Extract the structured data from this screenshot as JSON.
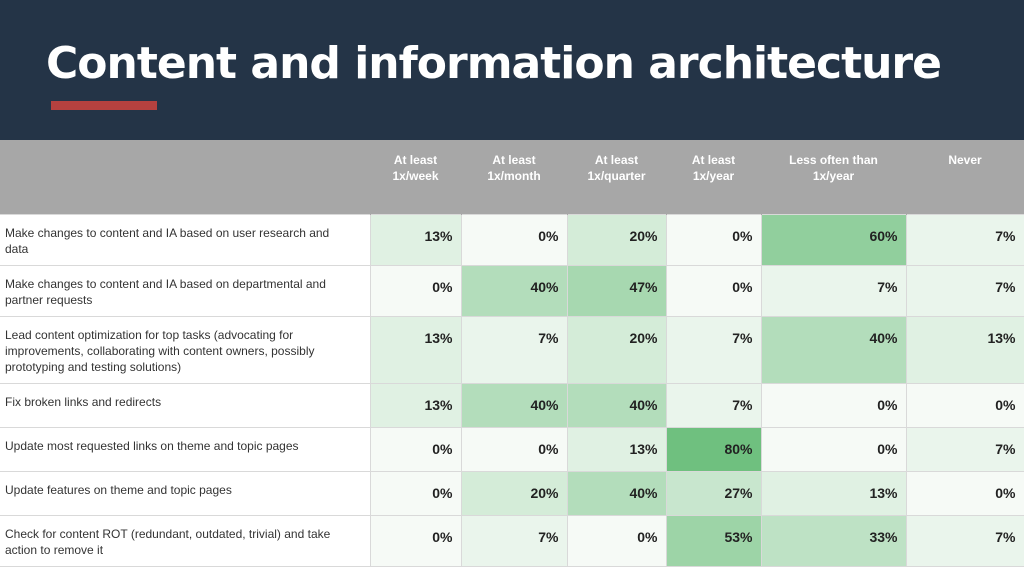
{
  "title": "Content and information architecture",
  "colors": {
    "header_bg": "#243447",
    "accent": "#b5413f",
    "column_header_bg": "#a7a7a7",
    "scale_low": "#f6faf6",
    "scale_high": "#6fc07f"
  },
  "chart_data": {
    "type": "table",
    "columns": [
      [
        "At least",
        "1x/week"
      ],
      [
        "At least",
        "1x/month"
      ],
      [
        "At least",
        "1x/quarter"
      ],
      [
        "At least",
        "1x/year"
      ],
      [
        "Less often than",
        "1x/year"
      ],
      [
        "Never"
      ]
    ],
    "rows": [
      {
        "label": "Make changes to content and IA based on user research and data",
        "values": [
          13,
          0,
          20,
          0,
          60,
          7
        ],
        "display": [
          "13%",
          "0%",
          "20%",
          "0%",
          "60%",
          "7%"
        ]
      },
      {
        "label": "Make changes to content and IA based on departmental and partner requests",
        "values": [
          0,
          40,
          47,
          0,
          7,
          7
        ],
        "display": [
          "0%",
          "40%",
          "47%",
          "0%",
          "7%",
          "7%"
        ]
      },
      {
        "label": "Lead content optimization for top tasks (advocating for improvements, collaborating with content owners, possibly prototyping and testing solutions)",
        "values": [
          13,
          7,
          20,
          7,
          40,
          13
        ],
        "display": [
          "13%",
          "7%",
          "20%",
          "7%",
          "40%",
          "13%"
        ]
      },
      {
        "label": "Fix broken links and redirects",
        "values": [
          13,
          40,
          40,
          7,
          0,
          0
        ],
        "display": [
          "13%",
          "40%",
          "40%",
          "7%",
          "0%",
          "0%"
        ]
      },
      {
        "label": "Update most requested links on theme and topic pages",
        "values": [
          0,
          0,
          13,
          80,
          0,
          7
        ],
        "display": [
          "0%",
          "0%",
          "13%",
          "80%",
          "0%",
          "7%"
        ]
      },
      {
        "label": "Update features on theme and topic pages",
        "values": [
          0,
          20,
          40,
          27,
          13,
          0
        ],
        "display": [
          "0%",
          "20%",
          "40%",
          "27%",
          "13%",
          "0%"
        ]
      },
      {
        "label": "Check for content ROT (redundant, outdated, trivial) and take action to remove it",
        "values": [
          0,
          7,
          0,
          53,
          33,
          7
        ],
        "display": [
          "0%",
          "7%",
          "0%",
          "53%",
          "33%",
          "7%"
        ]
      }
    ]
  }
}
